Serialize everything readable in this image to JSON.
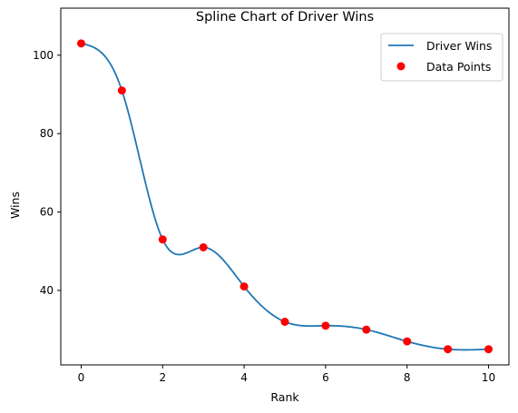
{
  "chart_data": {
    "type": "line",
    "title": "Spline Chart of Driver Wins",
    "xlabel": "Rank",
    "ylabel": "Wins",
    "xlim": [
      -0.5,
      10.5
    ],
    "ylim": [
      21,
      112
    ],
    "xticks": [
      0,
      2,
      4,
      6,
      8,
      10
    ],
    "yticks": [
      40,
      60,
      80,
      100
    ],
    "grid": false,
    "legend_position": "top-right",
    "series": [
      {
        "name": "Driver Wins",
        "kind": "spline",
        "color": "#1f77b4",
        "x": [
          0,
          1,
          2,
          3,
          4,
          5,
          6,
          7,
          8,
          9,
          10
        ],
        "y": [
          103,
          91,
          53,
          51,
          41,
          32,
          31,
          30,
          27,
          25,
          25
        ]
      },
      {
        "name": "Data Points",
        "kind": "scatter",
        "color": "#ff0000",
        "x": [
          0,
          1,
          2,
          3,
          4,
          5,
          6,
          7,
          8,
          9,
          10
        ],
        "y": [
          103,
          91,
          53,
          51,
          41,
          32,
          31,
          30,
          27,
          25,
          25
        ]
      }
    ]
  }
}
